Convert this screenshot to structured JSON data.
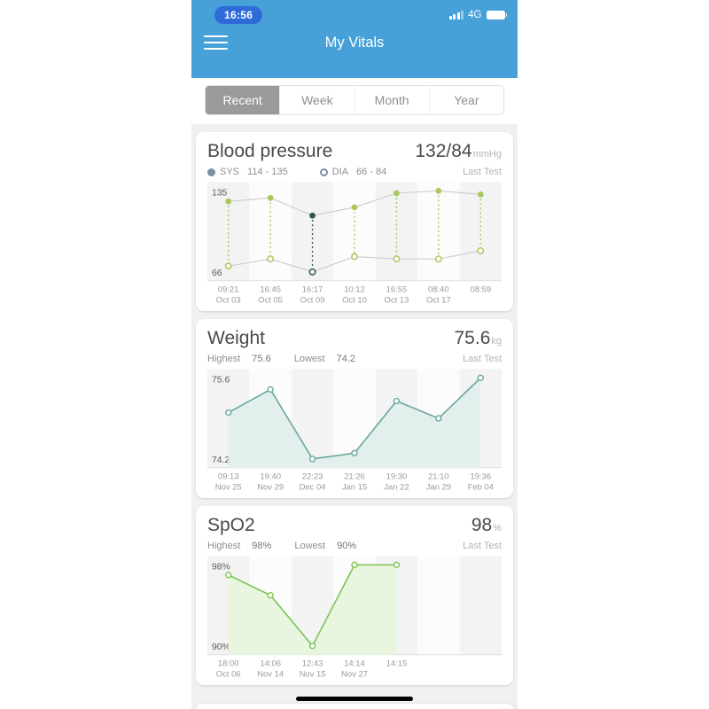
{
  "status_bar": {
    "time": "16:56",
    "network": "4G"
  },
  "header": {
    "title": "My Vitals",
    "menu_icon": "hamburger-icon"
  },
  "tabs": [
    {
      "label": "Recent",
      "selected": true
    },
    {
      "label": "Week",
      "selected": false
    },
    {
      "label": "Month",
      "selected": false
    },
    {
      "label": "Year",
      "selected": false
    }
  ],
  "cards": {
    "blood_pressure": {
      "title": "Blood pressure",
      "value": "132/84",
      "unit": "mmHg",
      "sys_label": "SYS",
      "sys_range": "114 - 135",
      "dia_label": "DIA",
      "dia_range": "66 - 84",
      "last_test": "Last Test"
    },
    "weight": {
      "title": "Weight",
      "value": "75.6",
      "unit": "kg",
      "highest_label": "Highest",
      "highest_value": "75.6",
      "lowest_label": "Lowest",
      "lowest_value": "74.2",
      "last_test": "Last Test"
    },
    "spo2": {
      "title": "SpO2",
      "value": "98",
      "unit": "%",
      "highest_label": "Highest",
      "highest_value": "98%",
      "lowest_label": "Lowest",
      "lowest_value": "90%",
      "last_test": "Last Test"
    }
  },
  "chart_data": [
    {
      "id": "blood_pressure",
      "type": "line",
      "title": "Blood pressure",
      "ylim": [
        66,
        135
      ],
      "yticks": [
        "135",
        "66"
      ],
      "slots": 7,
      "selected_index": 2,
      "x_ticks": [
        {
          "time": "09:21",
          "date": "Oct 03"
        },
        {
          "time": "16:45",
          "date": "Oct 05"
        },
        {
          "time": "16:17",
          "date": "Oct 09"
        },
        {
          "time": "10:12",
          "date": "Oct 10"
        },
        {
          "time": "16:55",
          "date": "Oct 13"
        },
        {
          "time": "08:40",
          "date": "Oct 17"
        },
        {
          "time": "08:59",
          "date": ""
        }
      ],
      "series": [
        {
          "name": "SYS",
          "values": [
            126,
            129,
            114,
            121,
            133,
            135,
            132
          ]
        },
        {
          "name": "DIA",
          "values": [
            71,
            77,
            66,
            79,
            77,
            77,
            84
          ]
        }
      ],
      "colors": {
        "point": "#a9c95c",
        "selected": "#33544c",
        "connector": "#cccccc"
      }
    },
    {
      "id": "weight",
      "type": "area",
      "title": "Weight",
      "ylim": [
        74.2,
        75.6
      ],
      "yticks": [
        "75.6",
        "74.2"
      ],
      "slots": 7,
      "x_ticks": [
        {
          "time": "09:13",
          "date": "Nov 25"
        },
        {
          "time": "19:40",
          "date": "Nov 29"
        },
        {
          "time": "22:23",
          "date": "Dec 04"
        },
        {
          "time": "21:26",
          "date": "Jan 15"
        },
        {
          "time": "19:30",
          "date": "Jan 22"
        },
        {
          "time": "21:10",
          "date": "Jan 29"
        },
        {
          "time": "19:36",
          "date": "Feb 04"
        }
      ],
      "values": [
        75.0,
        75.4,
        74.2,
        74.3,
        75.2,
        74.9,
        75.6
      ],
      "colors": {
        "line": "#68a79e",
        "fill": "#e3efec"
      }
    },
    {
      "id": "spo2",
      "type": "area",
      "title": "SpO2",
      "ylim": [
        90,
        98
      ],
      "yticks": [
        "98%",
        "90%"
      ],
      "slots": 7,
      "x_ticks": [
        {
          "time": "18:00",
          "date": "Oct 06"
        },
        {
          "time": "14:06",
          "date": "Nov 14"
        },
        {
          "time": "12:43",
          "date": "Nov 15"
        },
        {
          "time": "14:14",
          "date": "Nov 27"
        },
        {
          "time": "14:15",
          "date": ""
        }
      ],
      "values": [
        97,
        95,
        90,
        98,
        98
      ],
      "colors": {
        "line": "#7cc454",
        "fill": "#e8f5df"
      }
    }
  ],
  "colors": {
    "header_bg": "#47a1d8",
    "time_pill_bg": "#2e6bd8",
    "tab_selected_bg": "#9a9a9a",
    "legend": "#7e90a8",
    "background": "#eef0f1",
    "stripe": "#f3f3f4"
  }
}
